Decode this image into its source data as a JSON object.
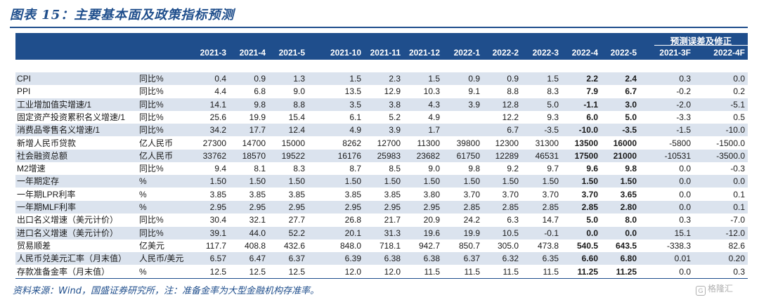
{
  "title": "图表 15：主要基本面及政策指标预测",
  "header": {
    "error_label": "预测误差及修正",
    "columns": [
      "2021-3",
      "2021-4",
      "2021-5",
      "2021-10",
      "2021-11",
      "2021-12",
      "2022-1",
      "2022-2",
      "2022-3",
      "2022-4",
      "2022-5",
      "2021-3F",
      "2022-4F"
    ]
  },
  "rows": [
    {
      "indicator": "CPI",
      "unit": "同比%",
      "values": [
        "0.4",
        "0.9",
        "1.3",
        "1.5",
        "2.3",
        "1.5",
        "0.9",
        "0.9",
        "1.5",
        "2.2",
        "2.4",
        "0.3",
        "0.0"
      ]
    },
    {
      "indicator": "PPI",
      "unit": "同比%",
      "values": [
        "4.4",
        "6.8",
        "9.0",
        "13.5",
        "12.9",
        "10.3",
        "9.1",
        "8.8",
        "8.3",
        "7.9",
        "6.7",
        "-0.2",
        "0.2"
      ]
    },
    {
      "indicator": "工业增加值实增速/1",
      "unit": "同比%",
      "values": [
        "14.1",
        "9.8",
        "8.8",
        "3.5",
        "3.8",
        "4.3",
        "3.9",
        "12.8",
        "5.0",
        "-1.1",
        "3.0",
        "-2.0",
        "-5.1"
      ]
    },
    {
      "indicator": "固定资产投资累积名义增速/1",
      "unit": "同比%",
      "values": [
        "25.6",
        "19.9",
        "15.4",
        "6.1",
        "5.2",
        "4.9",
        "",
        "12.2",
        "9.3",
        "6.0",
        "5.0",
        "-3.3",
        "0.5"
      ]
    },
    {
      "indicator": "消费品零售名义增速/1",
      "unit": "同比%",
      "values": [
        "34.2",
        "17.7",
        "12.4",
        "4.9",
        "3.9",
        "1.7",
        "",
        "6.7",
        "-3.5",
        "-10.0",
        "-3.5",
        "-1.5",
        "-10.0"
      ]
    },
    {
      "indicator": "新增人民币贷款",
      "unit": "亿人民币",
      "values": [
        "27300",
        "14700",
        "15000",
        "8262",
        "12700",
        "11300",
        "39800",
        "12300",
        "31300",
        "13500",
        "16000",
        "-5800",
        "-1500.0"
      ]
    },
    {
      "indicator": "社会融资总额",
      "unit": "亿人民币",
      "values": [
        "33762",
        "18570",
        "19522",
        "16176",
        "25983",
        "23682",
        "61750",
        "12289",
        "46531",
        "17500",
        "21000",
        "-10531",
        "-3500.0"
      ]
    },
    {
      "indicator": "M2增速",
      "unit": "同比%",
      "values": [
        "9.4",
        "8.1",
        "8.3",
        "8.7",
        "8.5",
        "9.0",
        "9.8",
        "9.2",
        "9.7",
        "9.6",
        "9.8",
        "0.0",
        "-0.3"
      ]
    },
    {
      "indicator": "一年期定存",
      "unit": "%",
      "values": [
        "1.50",
        "1.50",
        "1.50",
        "1.50",
        "1.50",
        "1.50",
        "1.50",
        "1.50",
        "1.50",
        "1.50",
        "1.50",
        "0.0",
        "0.0"
      ]
    },
    {
      "indicator": "一年期LPR利率",
      "unit": "%",
      "values": [
        "3.85",
        "3.85",
        "3.85",
        "3.85",
        "3.85",
        "3.80",
        "3.70",
        "3.70",
        "3.70",
        "3.70",
        "3.65",
        "0.0",
        "0.1"
      ]
    },
    {
      "indicator": "一年期MLF利率",
      "unit": "%",
      "values": [
        "2.95",
        "2.95",
        "2.95",
        "2.95",
        "2.95",
        "2.95",
        "2.85",
        "2.85",
        "2.85",
        "2.85",
        "2.80",
        "0.0",
        "0.1"
      ]
    },
    {
      "indicator": "出口名义增速（美元计价）",
      "unit": "同比%",
      "values": [
        "30.4",
        "32.1",
        "27.7",
        "26.8",
        "21.7",
        "20.9",
        "24.2",
        "6.3",
        "14.7",
        "5.0",
        "8.0",
        "0.3",
        "-7.0"
      ]
    },
    {
      "indicator": "进口名义增速（美元计价）",
      "unit": "同比%",
      "values": [
        "39.1",
        "44.0",
        "52.2",
        "20.1",
        "31.3",
        "19.6",
        "19.9",
        "10.5",
        "-0.1",
        "0.0",
        "0.0",
        "15.1",
        "-12.0"
      ]
    },
    {
      "indicator": "贸易顺差",
      "unit": "亿美元",
      "values": [
        "117.7",
        "408.8",
        "432.6",
        "848.0",
        "718.1",
        "942.7",
        "850.7",
        "305.0",
        "473.8",
        "540.5",
        "643.5",
        "-338.3",
        "82.6"
      ]
    },
    {
      "indicator": "人民币兑美元汇率（月末值）",
      "unit": "人民币/美元",
      "values": [
        "6.57",
        "6.47",
        "6.37",
        "6.39",
        "6.38",
        "6.38",
        "6.37",
        "6.32",
        "6.35",
        "6.60",
        "6.80",
        "0.01",
        "0.20"
      ]
    },
    {
      "indicator": "存款准备金率（月末值）",
      "unit": "%",
      "values": [
        "12.5",
        "12.5",
        "12.5",
        "12.0",
        "12.0",
        "11.5",
        "11.5",
        "11.5",
        "11.5",
        "11.25",
        "11.25",
        "0.0",
        "0.3"
      ]
    }
  ],
  "source": "资料来源：Wind，国盛证券研究所，注：准备金率为大型金融机构存准率。",
  "watermark": "格隆汇",
  "colors": {
    "header_bg": "#1f4e8c",
    "row_shade": "#dbe3ee",
    "title": "#1f4e8c"
  }
}
